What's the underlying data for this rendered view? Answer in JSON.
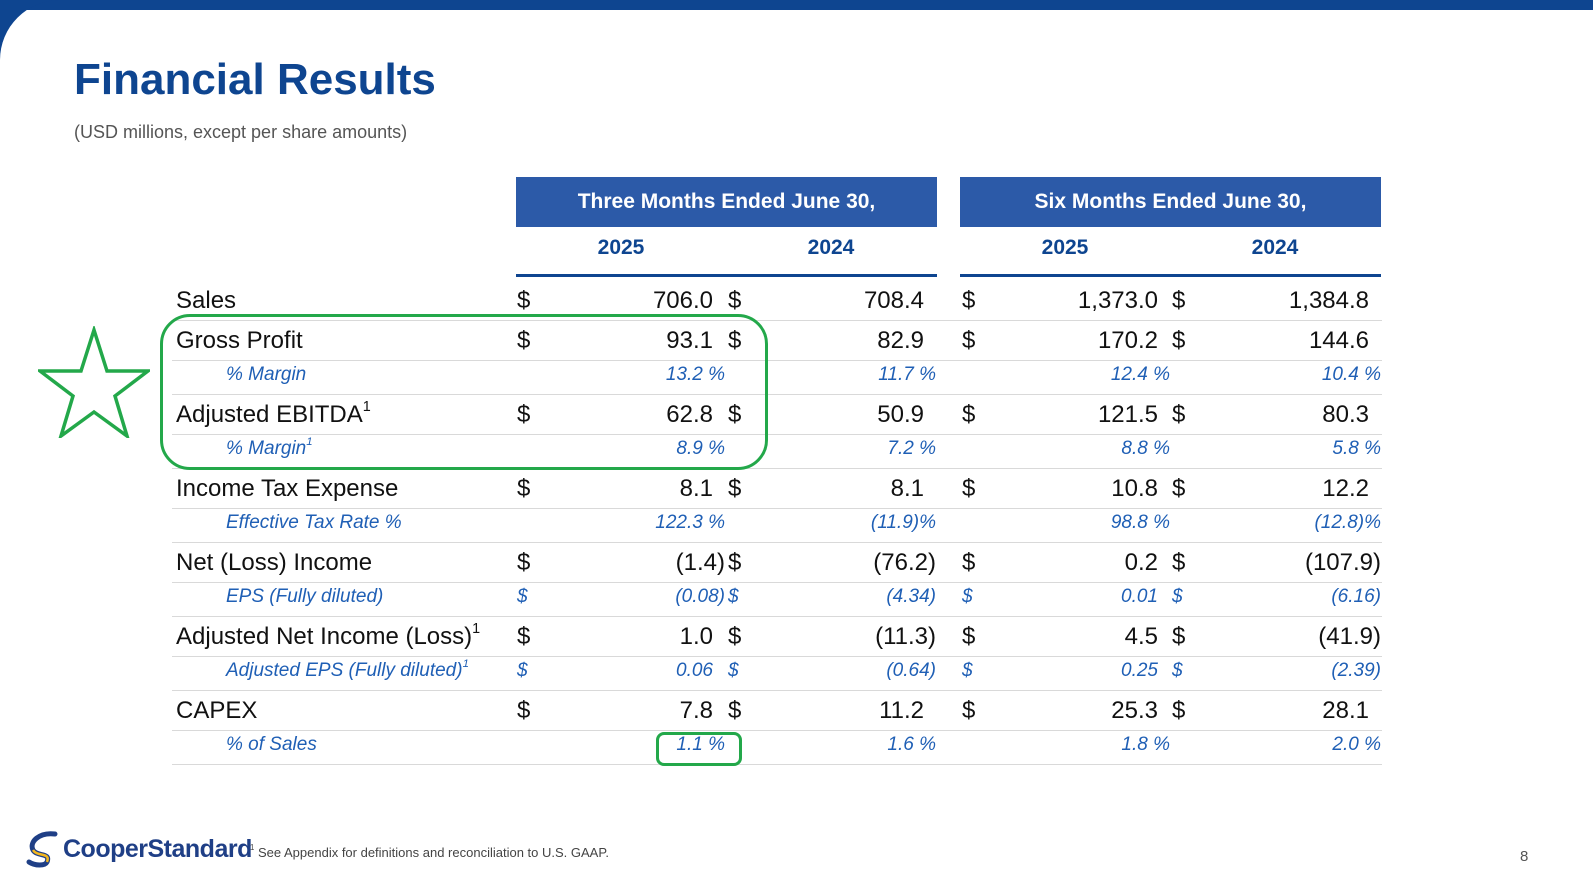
{
  "title": "Financial Results",
  "subtitle": "(USD millions, except per share amounts)",
  "headers": {
    "three_months": "Three Months Ended June 30,",
    "six_months": "Six Months Ended June 30,",
    "years": [
      "2025",
      "2024",
      "2025",
      "2024"
    ]
  },
  "rows": [
    {
      "label": "Sales",
      "d": [
        "$",
        "$",
        "$",
        "$"
      ],
      "v": [
        "706.0",
        "708.4",
        "1,373.0",
        "1,384.8"
      ]
    },
    {
      "label": "Gross Profit",
      "d": [
        "$",
        "$",
        "$",
        "$"
      ],
      "v": [
        "93.1",
        "82.9",
        "170.2",
        "144.6"
      ]
    },
    {
      "label": "% Margin",
      "d": [
        "",
        "",
        "",
        ""
      ],
      "v": [
        "13.2 %",
        "11.7 %",
        "12.4 %",
        "10.4 %"
      ]
    },
    {
      "label": "Adjusted EBITDA",
      "sup": "1",
      "d": [
        "$",
        "$",
        "$",
        "$"
      ],
      "v": [
        "62.8",
        "50.9",
        "121.5",
        "80.3"
      ]
    },
    {
      "label": "% Margin",
      "sup": "1",
      "d": [
        "",
        "",
        "",
        ""
      ],
      "v": [
        "8.9 %",
        "7.2 %",
        "8.8 %",
        "5.8 %"
      ]
    },
    {
      "label": "Income Tax Expense",
      "d": [
        "$",
        "$",
        "$",
        "$"
      ],
      "v": [
        "8.1",
        "8.1",
        "10.8",
        "12.2"
      ]
    },
    {
      "label": "Effective Tax Rate %",
      "d": [
        "",
        "",
        "",
        ""
      ],
      "v": [
        "122.3 %",
        "(11.9)%",
        "98.8 %",
        "(12.8)%"
      ]
    },
    {
      "label": "Net (Loss) Income",
      "d": [
        "$",
        "$",
        "$",
        "$"
      ],
      "v": [
        "(1.4)",
        "(76.2)",
        "0.2",
        "(107.9)"
      ]
    },
    {
      "label": "EPS (Fully diluted)",
      "d": [
        "$",
        "$",
        "$",
        "$"
      ],
      "v": [
        "(0.08)",
        "(4.34)",
        "0.01",
        "(6.16)"
      ]
    },
    {
      "label": "Adjusted Net Income (Loss)",
      "sup": "1",
      "d": [
        "$",
        "$",
        "$",
        "$"
      ],
      "v": [
        "1.0",
        "(11.3)",
        "4.5",
        "(41.9)"
      ]
    },
    {
      "label": "Adjusted EPS (Fully diluted)",
      "sup": "1",
      "d": [
        "$",
        "$",
        "$",
        "$"
      ],
      "v": [
        "0.06",
        "(0.64)",
        "0.25",
        "(2.39)"
      ]
    },
    {
      "label": "CAPEX",
      "d": [
        "$",
        "$",
        "$",
        "$"
      ],
      "v": [
        "7.8",
        "11.2",
        "25.3",
        "28.1"
      ]
    },
    {
      "label": "% of Sales",
      "d": [
        "",
        "",
        "",
        ""
      ],
      "v": [
        "1.1 %",
        "1.6 %",
        "1.8 %",
        "2.0 %"
      ]
    }
  ],
  "footer": {
    "logo_text": "CooperStandard",
    "footnote_sup": "1",
    "footnote": "See Appendix for definitions and reconciliation to U.S. GAAP.",
    "page_number": "8"
  },
  "colors": {
    "brand_blue": "#0e4590",
    "header_blue": "#2c5aa8",
    "italic_blue": "#1f5fb5",
    "annotation_green": "#23a84a"
  },
  "annotations": {
    "icon": "star-outline-icon"
  }
}
